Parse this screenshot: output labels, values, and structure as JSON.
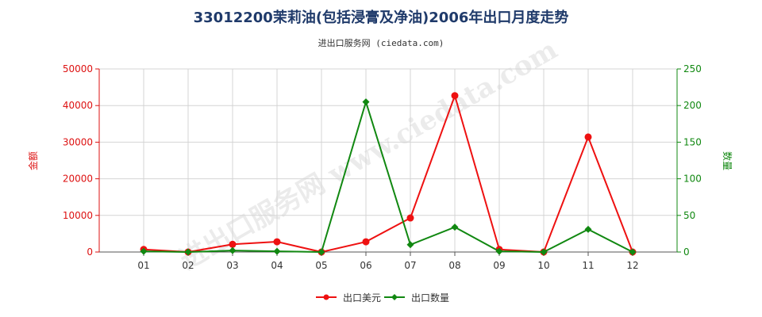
{
  "chart_data": {
    "type": "line",
    "title": "33012200茉莉油(包括浸膏及净油)2006年出口月度走势",
    "subtitle": "进出口服务网 (ciedata.com)",
    "watermark": "进出口服务网 www.ciedata.com",
    "categories": [
      "01",
      "02",
      "03",
      "04",
      "05",
      "06",
      "07",
      "08",
      "09",
      "10",
      "11",
      "12"
    ],
    "y_left": {
      "label": "金额",
      "lim": [
        0,
        50000
      ],
      "ticks": [
        "0",
        "10000",
        "20000",
        "30000",
        "40000",
        "50000"
      ],
      "color": "#dd1111"
    },
    "y_right": {
      "label": "数量",
      "lim": [
        0,
        250
      ],
      "ticks": [
        "0",
        "50",
        "100",
        "150",
        "200",
        "250"
      ],
      "color": "#118811"
    },
    "grid": true,
    "legend_position": "bottom",
    "series": [
      {
        "name": "出口美元",
        "axis": "left",
        "color": "#ee1111",
        "marker": "circle",
        "values": [
          700,
          0,
          2100,
          2800,
          0,
          2800,
          9300,
          42700,
          700,
          0,
          31400,
          0
        ]
      },
      {
        "name": "出口数量",
        "axis": "right",
        "color": "#118811",
        "marker": "diamond",
        "values": [
          1,
          0,
          2,
          1,
          0,
          205,
          10,
          34,
          1,
          0,
          31,
          0
        ]
      }
    ]
  }
}
